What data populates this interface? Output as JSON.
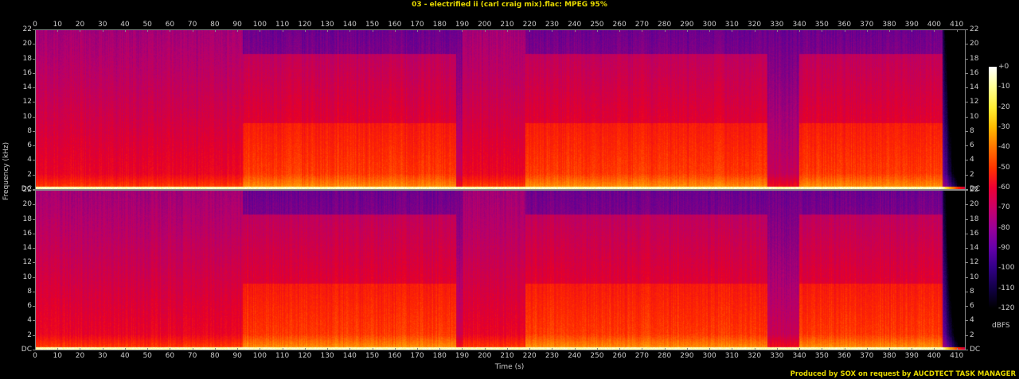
{
  "header": {
    "title": "03 - electrified ii (carl craig mix).flac: MPEG 95%"
  },
  "footer": {
    "credit": "Produced by SOX on request by AUCDTECT TASK MANAGER"
  },
  "chart_data": {
    "type": "heatmap",
    "title": "03 - electrified ii (carl craig mix).flac: MPEG 95%",
    "xlabel": "Time (s)",
    "ylabel": "Frequency (kHz)",
    "x_ticks": [
      0,
      10,
      20,
      30,
      40,
      50,
      60,
      70,
      80,
      90,
      100,
      110,
      120,
      130,
      140,
      150,
      160,
      170,
      180,
      190,
      200,
      210,
      220,
      230,
      240,
      250,
      260,
      270,
      280,
      290,
      300,
      310,
      320,
      330,
      340,
      350,
      360,
      370,
      380,
      390,
      400,
      410
    ],
    "y_ticks": [
      "DC",
      "2",
      "4",
      "6",
      "8",
      "10",
      "12",
      "14",
      "16",
      "18",
      "20",
      "22"
    ],
    "xlim": [
      0,
      414
    ],
    "ylim_khz": [
      0,
      22
    ],
    "channels": 2,
    "colorbar": {
      "label": "dBFS",
      "ticks": [
        "+0",
        "-10",
        "-20",
        "-30",
        "-40",
        "-50",
        "-60",
        "-70",
        "-80",
        "-90",
        "-100",
        "-110",
        "-120"
      ],
      "range": [
        -120,
        0
      ]
    },
    "segments": [
      {
        "start": 0,
        "end": 92,
        "level": "mid",
        "note": "red broadband, sparse"
      },
      {
        "start": 92,
        "end": 141,
        "level": "high",
        "note": "orange bursts 110-140s"
      },
      {
        "start": 141,
        "end": 187,
        "level": "high",
        "note": "dense orange, purple above 19kHz"
      },
      {
        "start": 187,
        "end": 190,
        "level": "low",
        "note": "break"
      },
      {
        "start": 190,
        "end": 218,
        "level": "mid",
        "note": "red broadband"
      },
      {
        "start": 218,
        "end": 326,
        "level": "high",
        "note": "dense orange"
      },
      {
        "start": 326,
        "end": 340,
        "level": "low",
        "note": "break"
      },
      {
        "start": 340,
        "end": 404,
        "level": "high",
        "note": "dense orange"
      },
      {
        "start": 404,
        "end": 414,
        "level": "fade",
        "note": "fade out"
      }
    ]
  }
}
